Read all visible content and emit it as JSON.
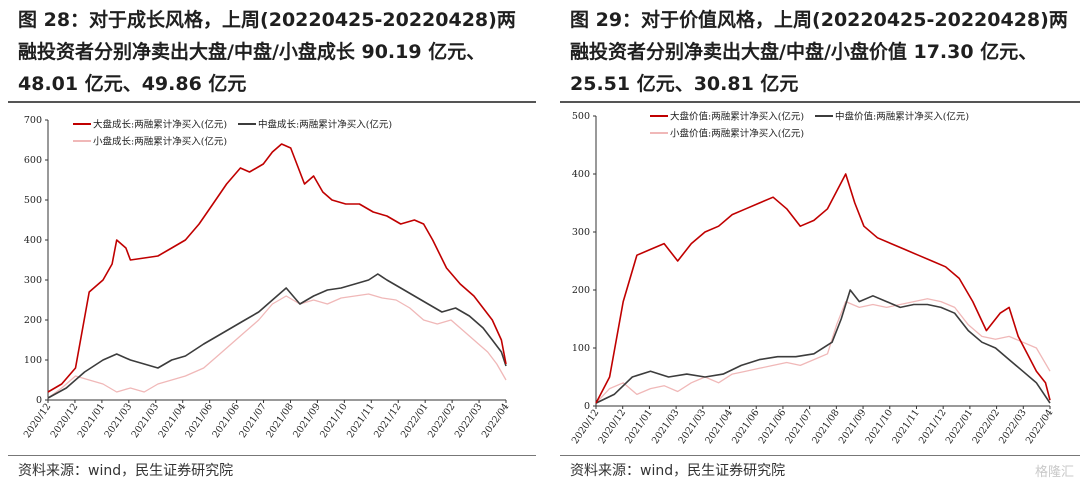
{
  "colors": {
    "large": "#c00000",
    "mid": "#3c3c3c",
    "small": "#f0b8b8"
  },
  "panels": [
    {
      "title": "图 28：对于成长风格，上周(20220425-20220428)两融投资者分别净卖出大盘/中盘/小盘成长 90.19 亿元、48.01 亿元、49.86 亿元",
      "source": "资料来源：wind，民生证券研究院"
    },
    {
      "title": "图 29：对于价值风格，上周(20220425-20220428)两融投资者分别净卖出大盘/中盘/小盘价值 17.30 亿元、25.51 亿元、30.81 亿元",
      "source": "资料来源：wind，民生证券研究院"
    }
  ],
  "watermark": "格隆汇",
  "chart_data": [
    {
      "type": "line",
      "ylim": [
        0,
        700
      ],
      "yticks": [
        0,
        100,
        200,
        300,
        400,
        500,
        600,
        700
      ],
      "xlim": [
        0,
        1
      ],
      "xticks": [
        "2020/12",
        "2020/12",
        "2021/01",
        "2021/03",
        "2021/03",
        "2021/04",
        "2021/06",
        "2021/06",
        "2021/07",
        "2021/08",
        "2021/09",
        "2021/10",
        "2021/11",
        "2021/12",
        "2022/01",
        "2022/02",
        "2022/03",
        "2022/04"
      ],
      "legend": [
        "大盘成长:两融累计净买入(亿元)",
        "中盘成长:两融累计净买入(亿元)",
        "小盘成长:两融累计净买入(亿元)"
      ],
      "series": [
        {
          "name": "大盘成长:两融累计净买入(亿元)",
          "color_key": "large",
          "points": [
            [
              0.0,
              20
            ],
            [
              0.03,
              40
            ],
            [
              0.06,
              80
            ],
            [
              0.09,
              270
            ],
            [
              0.12,
              300
            ],
            [
              0.14,
              340
            ],
            [
              0.15,
              400
            ],
            [
              0.17,
              380
            ],
            [
              0.18,
              350
            ],
            [
              0.21,
              355
            ],
            [
              0.24,
              360
            ],
            [
              0.27,
              380
            ],
            [
              0.3,
              400
            ],
            [
              0.33,
              440
            ],
            [
              0.36,
              490
            ],
            [
              0.39,
              540
            ],
            [
              0.42,
              580
            ],
            [
              0.44,
              570
            ],
            [
              0.47,
              590
            ],
            [
              0.49,
              620
            ],
            [
              0.51,
              640
            ],
            [
              0.53,
              630
            ],
            [
              0.56,
              540
            ],
            [
              0.58,
              560
            ],
            [
              0.6,
              520
            ],
            [
              0.62,
              500
            ],
            [
              0.65,
              490
            ],
            [
              0.68,
              490
            ],
            [
              0.71,
              470
            ],
            [
              0.74,
              460
            ],
            [
              0.77,
              440
            ],
            [
              0.8,
              450
            ],
            [
              0.82,
              440
            ],
            [
              0.84,
              400
            ],
            [
              0.87,
              330
            ],
            [
              0.9,
              290
            ],
            [
              0.93,
              260
            ],
            [
              0.95,
              230
            ],
            [
              0.97,
              200
            ],
            [
              0.99,
              150
            ],
            [
              1.0,
              90
            ]
          ]
        },
        {
          "name": "中盘成长:两融累计净买入(亿元)",
          "color_key": "mid",
          "points": [
            [
              0.0,
              5
            ],
            [
              0.04,
              30
            ],
            [
              0.08,
              70
            ],
            [
              0.12,
              100
            ],
            [
              0.15,
              115
            ],
            [
              0.18,
              100
            ],
            [
              0.21,
              90
            ],
            [
              0.24,
              80
            ],
            [
              0.27,
              100
            ],
            [
              0.3,
              110
            ],
            [
              0.34,
              140
            ],
            [
              0.37,
              160
            ],
            [
              0.4,
              180
            ],
            [
              0.43,
              200
            ],
            [
              0.46,
              220
            ],
            [
              0.49,
              250
            ],
            [
              0.52,
              280
            ],
            [
              0.55,
              240
            ],
            [
              0.58,
              260
            ],
            [
              0.61,
              275
            ],
            [
              0.64,
              280
            ],
            [
              0.67,
              290
            ],
            [
              0.7,
              300
            ],
            [
              0.72,
              315
            ],
            [
              0.74,
              300
            ],
            [
              0.77,
              280
            ],
            [
              0.8,
              260
            ],
            [
              0.83,
              240
            ],
            [
              0.86,
              220
            ],
            [
              0.89,
              230
            ],
            [
              0.92,
              210
            ],
            [
              0.95,
              180
            ],
            [
              0.97,
              150
            ],
            [
              0.99,
              120
            ],
            [
              1.0,
              85
            ]
          ]
        },
        {
          "name": "小盘成长:两融累计净买入(亿元)",
          "color_key": "small",
          "points": [
            [
              0.0,
              5
            ],
            [
              0.03,
              30
            ],
            [
              0.06,
              60
            ],
            [
              0.09,
              50
            ],
            [
              0.12,
              40
            ],
            [
              0.15,
              20
            ],
            [
              0.18,
              30
            ],
            [
              0.21,
              20
            ],
            [
              0.24,
              40
            ],
            [
              0.27,
              50
            ],
            [
              0.3,
              60
            ],
            [
              0.34,
              80
            ],
            [
              0.37,
              110
            ],
            [
              0.4,
              140
            ],
            [
              0.43,
              170
            ],
            [
              0.46,
              200
            ],
            [
              0.49,
              240
            ],
            [
              0.52,
              260
            ],
            [
              0.55,
              240
            ],
            [
              0.58,
              250
            ],
            [
              0.61,
              240
            ],
            [
              0.64,
              255
            ],
            [
              0.67,
              260
            ],
            [
              0.7,
              265
            ],
            [
              0.73,
              255
            ],
            [
              0.76,
              250
            ],
            [
              0.79,
              230
            ],
            [
              0.82,
              200
            ],
            [
              0.85,
              190
            ],
            [
              0.88,
              200
            ],
            [
              0.91,
              170
            ],
            [
              0.94,
              140
            ],
            [
              0.96,
              120
            ],
            [
              0.98,
              90
            ],
            [
              1.0,
              50
            ]
          ]
        }
      ]
    },
    {
      "type": "line",
      "ylim": [
        0,
        500
      ],
      "yticks": [
        0,
        100,
        200,
        300,
        400,
        500
      ],
      "xlim": [
        0,
        1
      ],
      "xticks": [
        "2020/12",
        "2020/12",
        "2021/01",
        "2021/03",
        "2021/03",
        "2021/04",
        "2021/06",
        "2021/06",
        "2021/07",
        "2021/08",
        "2021/09",
        "2021/10",
        "2021/11",
        "2021/12",
        "2022/01",
        "2022/02",
        "2022/03",
        "2022/04"
      ],
      "legend": [
        "大盘价值:两融累计净买入(亿元)",
        "中盘价值:两融累计净买入(亿元)",
        "小盘价值:两融累计净买入(亿元)"
      ],
      "series": [
        {
          "name": "大盘价值:两融累计净买入(亿元)",
          "color_key": "large",
          "points": [
            [
              0.0,
              5
            ],
            [
              0.03,
              50
            ],
            [
              0.06,
              180
            ],
            [
              0.09,
              260
            ],
            [
              0.12,
              270
            ],
            [
              0.15,
              280
            ],
            [
              0.18,
              250
            ],
            [
              0.21,
              280
            ],
            [
              0.24,
              300
            ],
            [
              0.27,
              310
            ],
            [
              0.3,
              330
            ],
            [
              0.33,
              340
            ],
            [
              0.36,
              350
            ],
            [
              0.39,
              360
            ],
            [
              0.42,
              340
            ],
            [
              0.45,
              310
            ],
            [
              0.48,
              320
            ],
            [
              0.51,
              340
            ],
            [
              0.53,
              370
            ],
            [
              0.55,
              400
            ],
            [
              0.57,
              350
            ],
            [
              0.59,
              310
            ],
            [
              0.62,
              290
            ],
            [
              0.65,
              280
            ],
            [
              0.68,
              270
            ],
            [
              0.71,
              260
            ],
            [
              0.74,
              250
            ],
            [
              0.77,
              240
            ],
            [
              0.8,
              220
            ],
            [
              0.83,
              180
            ],
            [
              0.86,
              130
            ],
            [
              0.89,
              160
            ],
            [
              0.91,
              170
            ],
            [
              0.93,
              120
            ],
            [
              0.95,
              90
            ],
            [
              0.97,
              60
            ],
            [
              0.99,
              40
            ],
            [
              1.0,
              10
            ]
          ]
        },
        {
          "name": "中盘价值:两融累计净买入(亿元)",
          "color_key": "mid",
          "points": [
            [
              0.0,
              5
            ],
            [
              0.04,
              20
            ],
            [
              0.08,
              50
            ],
            [
              0.12,
              60
            ],
            [
              0.16,
              50
            ],
            [
              0.2,
              55
            ],
            [
              0.24,
              50
            ],
            [
              0.28,
              55
            ],
            [
              0.32,
              70
            ],
            [
              0.36,
              80
            ],
            [
              0.4,
              85
            ],
            [
              0.44,
              85
            ],
            [
              0.48,
              90
            ],
            [
              0.52,
              110
            ],
            [
              0.54,
              150
            ],
            [
              0.56,
              200
            ],
            [
              0.58,
              180
            ],
            [
              0.61,
              190
            ],
            [
              0.64,
              180
            ],
            [
              0.67,
              170
            ],
            [
              0.7,
              175
            ],
            [
              0.73,
              175
            ],
            [
              0.76,
              170
            ],
            [
              0.79,
              160
            ],
            [
              0.82,
              130
            ],
            [
              0.85,
              110
            ],
            [
              0.88,
              100
            ],
            [
              0.91,
              80
            ],
            [
              0.94,
              60
            ],
            [
              0.97,
              40
            ],
            [
              1.0,
              5
            ]
          ]
        },
        {
          "name": "小盘价值:两融累计净买入(亿元)",
          "color_key": "small",
          "points": [
            [
              0.0,
              5
            ],
            [
              0.03,
              30
            ],
            [
              0.06,
              40
            ],
            [
              0.09,
              20
            ],
            [
              0.12,
              30
            ],
            [
              0.15,
              35
            ],
            [
              0.18,
              25
            ],
            [
              0.21,
              40
            ],
            [
              0.24,
              50
            ],
            [
              0.27,
              40
            ],
            [
              0.3,
              55
            ],
            [
              0.33,
              60
            ],
            [
              0.36,
              65
            ],
            [
              0.39,
              70
            ],
            [
              0.42,
              75
            ],
            [
              0.45,
              70
            ],
            [
              0.48,
              80
            ],
            [
              0.51,
              90
            ],
            [
              0.53,
              140
            ],
            [
              0.55,
              180
            ],
            [
              0.58,
              170
            ],
            [
              0.61,
              175
            ],
            [
              0.64,
              170
            ],
            [
              0.67,
              175
            ],
            [
              0.7,
              180
            ],
            [
              0.73,
              185
            ],
            [
              0.76,
              180
            ],
            [
              0.79,
              170
            ],
            [
              0.82,
              140
            ],
            [
              0.85,
              120
            ],
            [
              0.88,
              115
            ],
            [
              0.91,
              120
            ],
            [
              0.94,
              110
            ],
            [
              0.97,
              100
            ],
            [
              1.0,
              60
            ]
          ]
        }
      ]
    }
  ]
}
